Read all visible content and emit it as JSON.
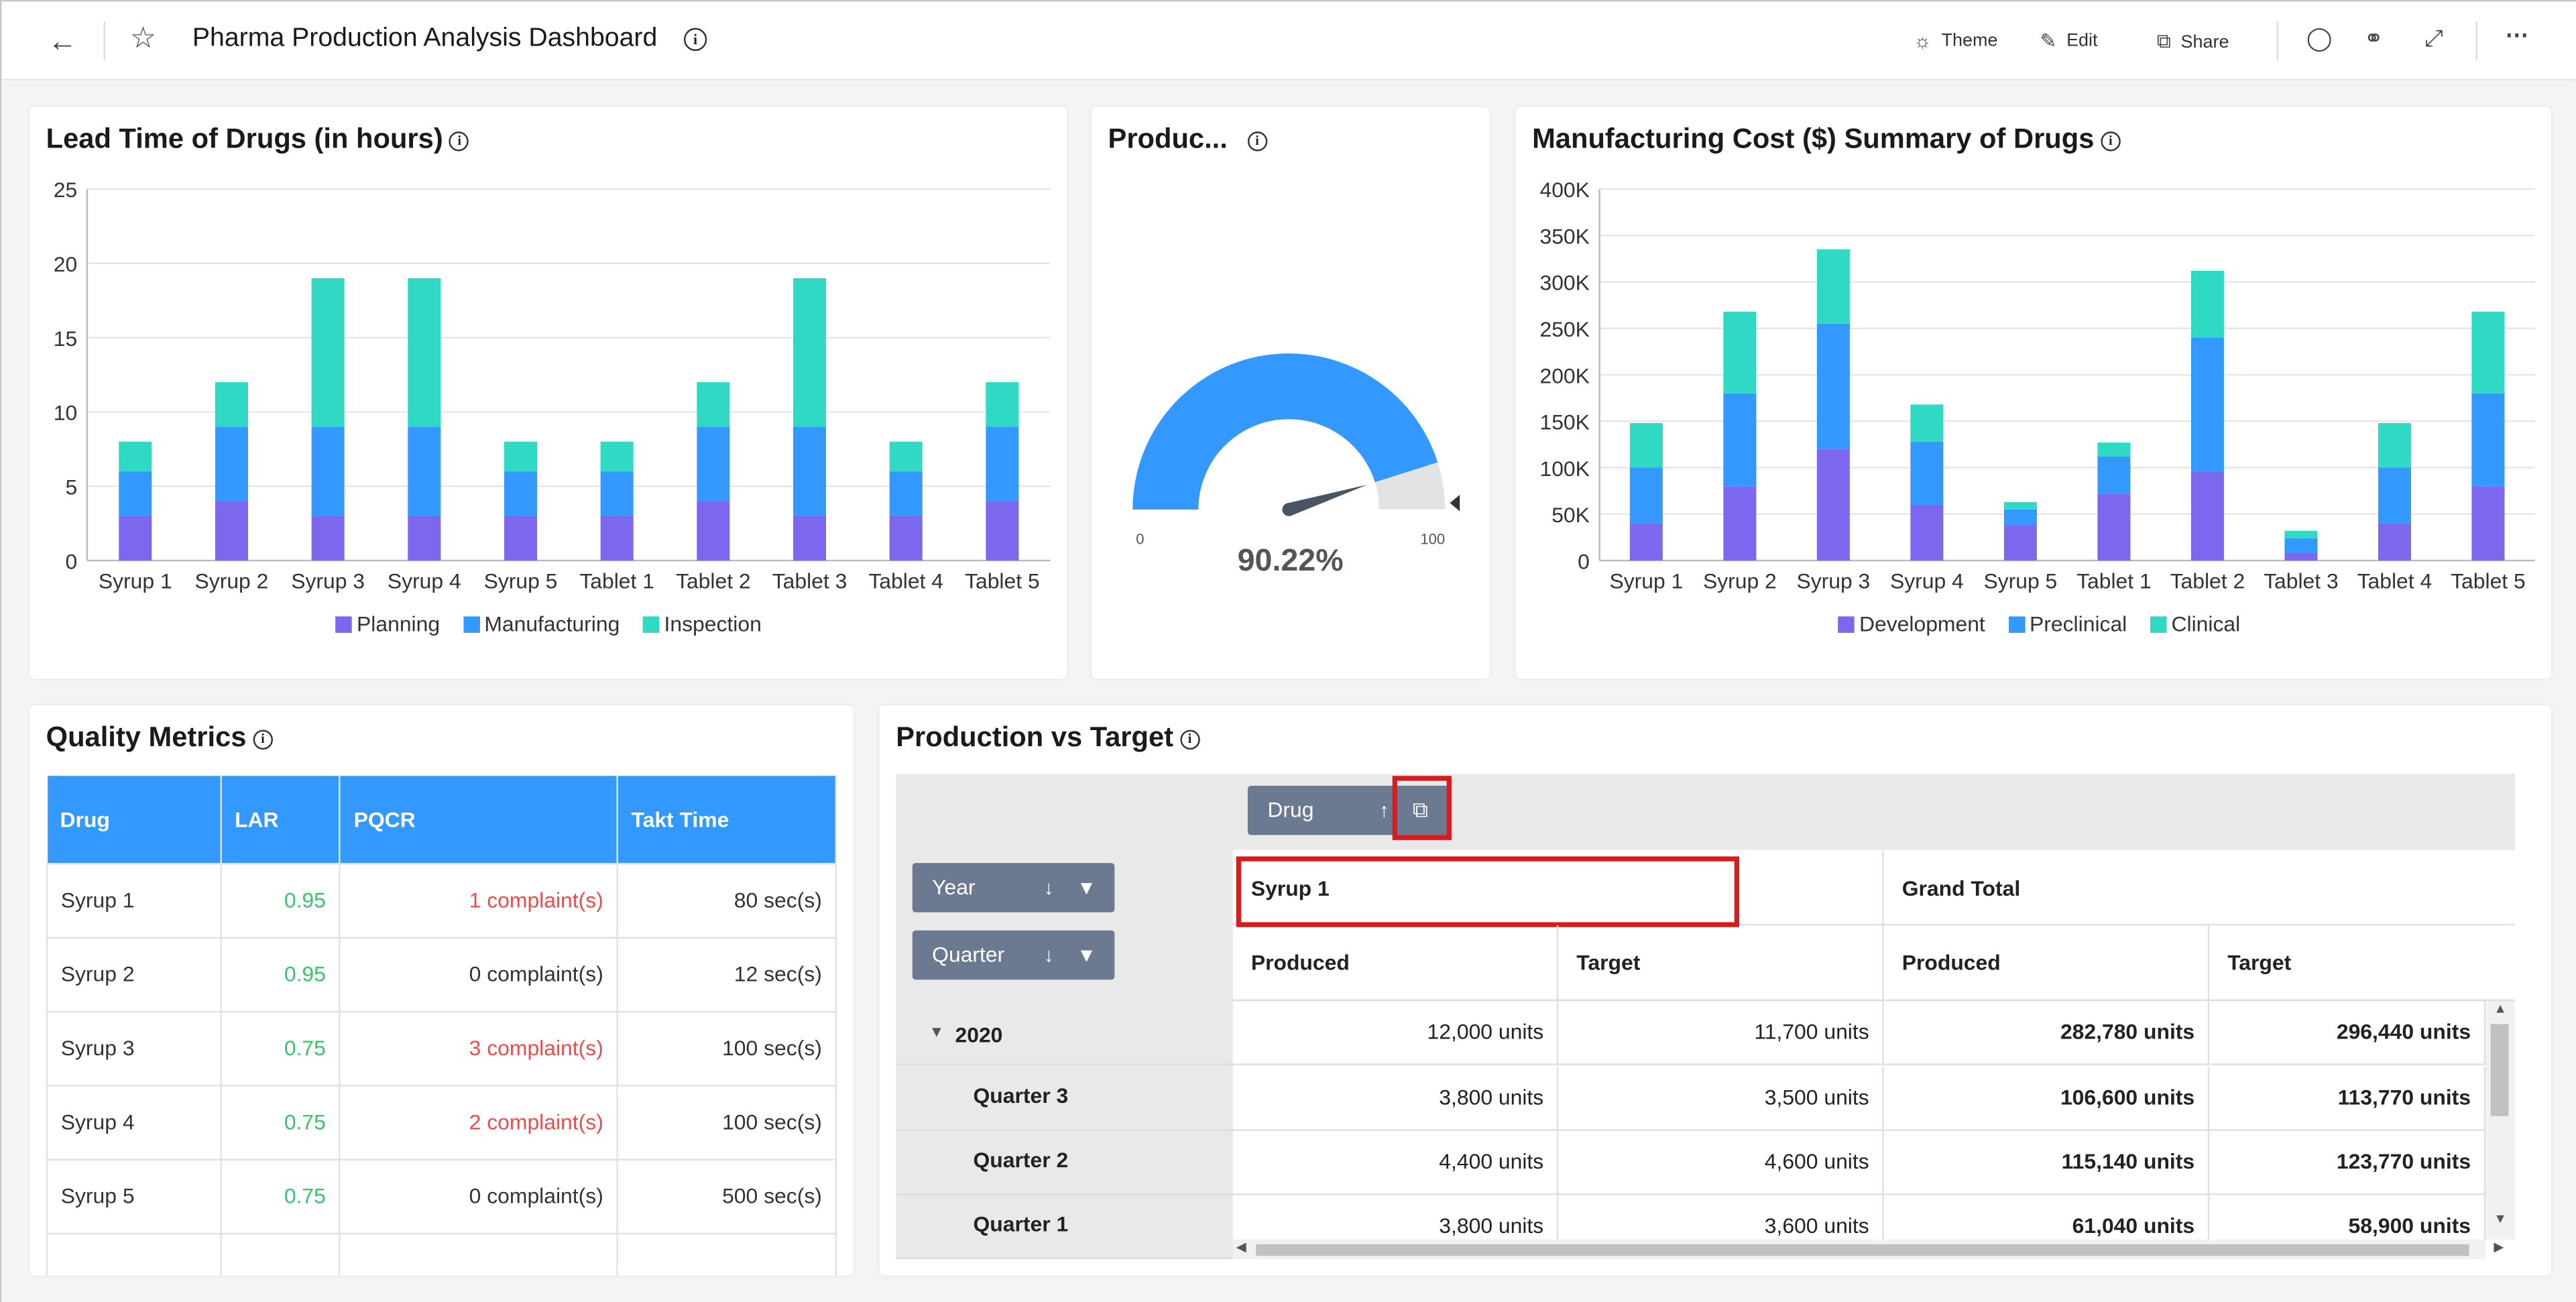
{
  "header": {
    "title": "Pharma Production Analysis Dashboard",
    "theme_label": "Theme",
    "edit_label": "Edit",
    "share_label": "Share"
  },
  "lead_time": {
    "title": "Lead Time of Drugs (in hours)",
    "legend": [
      "Planning",
      "Manufacturing",
      "Inspection"
    ]
  },
  "gauge": {
    "title": "Produc...",
    "value_text": "90.22%",
    "min_label": "0",
    "max_label": "100"
  },
  "mfg_cost": {
    "title": "Manufacturing Cost ($) Summary of Drugs",
    "legend": [
      "Development",
      "Preclinical",
      "Clinical"
    ]
  },
  "quality": {
    "title": "Quality Metrics",
    "columns": [
      "Drug",
      "LAR",
      "PQCR",
      "Takt Time"
    ],
    "rows": [
      {
        "drug": "Syrup 1",
        "lar": "0.95",
        "pqcr": "1 complaint(s)",
        "takt": "80 sec(s)"
      },
      {
        "drug": "Syrup 2",
        "lar": "0.95",
        "pqcr": "0 complaint(s)",
        "takt": "12 sec(s)"
      },
      {
        "drug": "Syrup 3",
        "lar": "0.75",
        "pqcr": "3 complaint(s)",
        "takt": "100 sec(s)"
      },
      {
        "drug": "Syrup 4",
        "lar": "0.75",
        "pqcr": "2 complaint(s)",
        "takt": "100 sec(s)"
      },
      {
        "drug": "Syrup 5",
        "lar": "0.75",
        "pqcr": "0 complaint(s)",
        "takt": "500 sec(s)"
      }
    ]
  },
  "pivot": {
    "title": "Production vs Target",
    "col_field": "Drug",
    "row_fields": [
      "Year",
      "Quarter"
    ],
    "col_header_1": "Syrup 1",
    "col_header_2": "Grand Total",
    "measure_1": "Produced",
    "measure_2": "Target",
    "rows": [
      {
        "label": "2020",
        "v": [
          "12,000 units",
          "11,700 units",
          "282,780 units",
          "296,440 units"
        ]
      },
      {
        "label": "Quarter 3",
        "v": [
          "3,800 units",
          "3,500 units",
          "106,600 units",
          "113,770 units"
        ]
      },
      {
        "label": "Quarter 2",
        "v": [
          "4,400 units",
          "4,600 units",
          "115,140 units",
          "123,770 units"
        ]
      },
      {
        "label": "Quarter 1",
        "v": [
          "3,800 units",
          "3,600 units",
          "61,040 units",
          "58,900 units"
        ]
      }
    ]
  },
  "colors": {
    "series1": "#7b68ee",
    "series2": "#3399ff",
    "series3": "#2fd9c4",
    "good": "#39c36b",
    "bad": "#ef4b4b"
  },
  "chart_data": [
    {
      "type": "bar",
      "stacked": true,
      "categories": [
        "Syrup 1",
        "Syrup 2",
        "Syrup 3",
        "Syrup 4",
        "Syrup 5",
        "Tablet 1",
        "Tablet 2",
        "Tablet 3",
        "Tablet 4",
        "Tablet 5"
      ],
      "series": [
        {
          "name": "Planning",
          "values": [
            3,
            4,
            3,
            3,
            3,
            3,
            4,
            3,
            3,
            4
          ]
        },
        {
          "name": "Manufacturing",
          "values": [
            3,
            5,
            6,
            6,
            3,
            3,
            5,
            6,
            3,
            5
          ]
        },
        {
          "name": "Inspection",
          "values": [
            2,
            3,
            10,
            10,
            2,
            2,
            3,
            10,
            2,
            3
          ]
        }
      ],
      "yticks": [
        "0",
        "5",
        "10",
        "15",
        "20",
        "25"
      ],
      "ylim": [
        0,
        25
      ],
      "title": "Lead Time of Drugs (in hours)"
    },
    {
      "type": "bar",
      "stacked": true,
      "categories": [
        "Syrup 1",
        "Syrup 2",
        "Syrup 3",
        "Syrup 4",
        "Syrup 5",
        "Tablet 1",
        "Tablet 2",
        "Tablet 3",
        "Tablet 4",
        "Tablet 5"
      ],
      "series": [
        {
          "name": "Development",
          "values": [
            40000,
            80000,
            120000,
            60000,
            38000,
            72000,
            96000,
            8000,
            40000,
            80000
          ]
        },
        {
          "name": "Preclinical",
          "values": [
            60000,
            100000,
            135000,
            68000,
            17000,
            40000,
            144000,
            16000,
            60000,
            100000
          ]
        },
        {
          "name": "Clinical",
          "values": [
            48000,
            88000,
            80000,
            40000,
            8000,
            15000,
            72000,
            8000,
            48000,
            88000
          ]
        }
      ],
      "yticks": [
        "0",
        "50K",
        "100K",
        "150K",
        "200K",
        "250K",
        "300K",
        "350K",
        "400K"
      ],
      "ylim": [
        0,
        400000
      ],
      "title": "Manufacturing Cost ($) Summary of Drugs"
    },
    {
      "type": "gauge",
      "value": 90.22,
      "range": [
        0,
        100
      ]
    }
  ]
}
